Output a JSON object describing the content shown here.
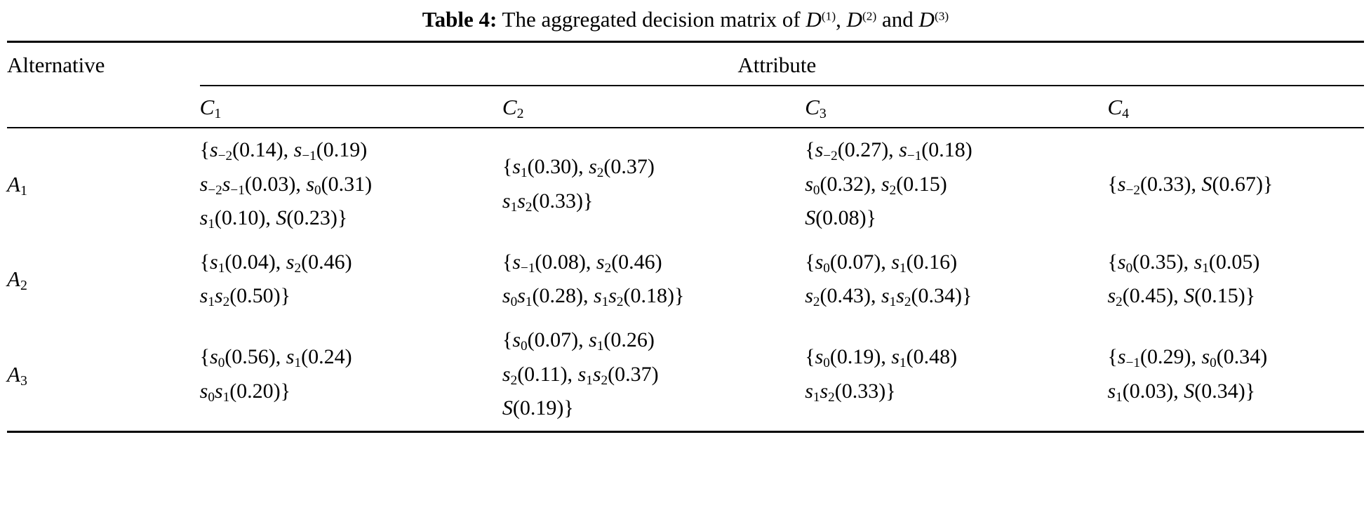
{
  "title": {
    "label": "Table 4:",
    "text": "  The aggregated decision matrix of ",
    "matrices": [
      "D^{(1)}",
      "D^{(2)}",
      "D^{(3)}"
    ],
    "separators": [
      ", ",
      " and "
    ]
  },
  "table": {
    "alternative_header": "Alternative",
    "attribute_header": "Attribute",
    "columns": [
      "C_{1}",
      "C_{2}",
      "C_{3}",
      "C_{4}"
    ],
    "rows": [
      {
        "alternative": "A_{1}",
        "cells": [
          "{s_{−2}(0.14), s_{−1}(0.19)\ns_{−2}s_{−1}(0.03), s_{0}(0.31)\ns_{1}(0.10), S(0.23)}",
          "{s_{1}(0.30), s_{2}(0.37)\ns_{1}s_{2}(0.33)}",
          "{s_{−2}(0.27), s_{−1}(0.18)\ns_{0}(0.32), s_{2}(0.15)\nS(0.08)}",
          "{s_{−2}(0.33), S(0.67)}"
        ]
      },
      {
        "alternative": "A_{2}",
        "cells": [
          "{s_{1}(0.04), s_{2}(0.46)\ns_{1}s_{2}(0.50)}",
          "{s_{−1}(0.08), s_{2}(0.46)\ns_{0}s_{1}(0.28), s_{1}s_{2}(0.18)}",
          "{s_{0}(0.07), s_{1}(0.16)\ns_{2}(0.43), s_{1}s_{2}(0.34)}",
          "{s_{0}(0.35), s_{1}(0.05)\ns_{2}(0.45), S(0.15)}"
        ]
      },
      {
        "alternative": "A_{3}",
        "cells": [
          "{s_{0}(0.56), s_{1}(0.24)\ns_{0}s_{1}(0.20)}",
          "{s_{0}(0.07), s_{1}(0.26)\ns_{2}(0.11), s_{1}s_{2}(0.37)\nS(0.19)}",
          "{s_{0}(0.19), s_{1}(0.48)\ns_{1}s_{2}(0.33)}",
          "{s_{−1}(0.29), s_{0}(0.34)\ns_{1}(0.03), S(0.34)}"
        ]
      }
    ]
  }
}
